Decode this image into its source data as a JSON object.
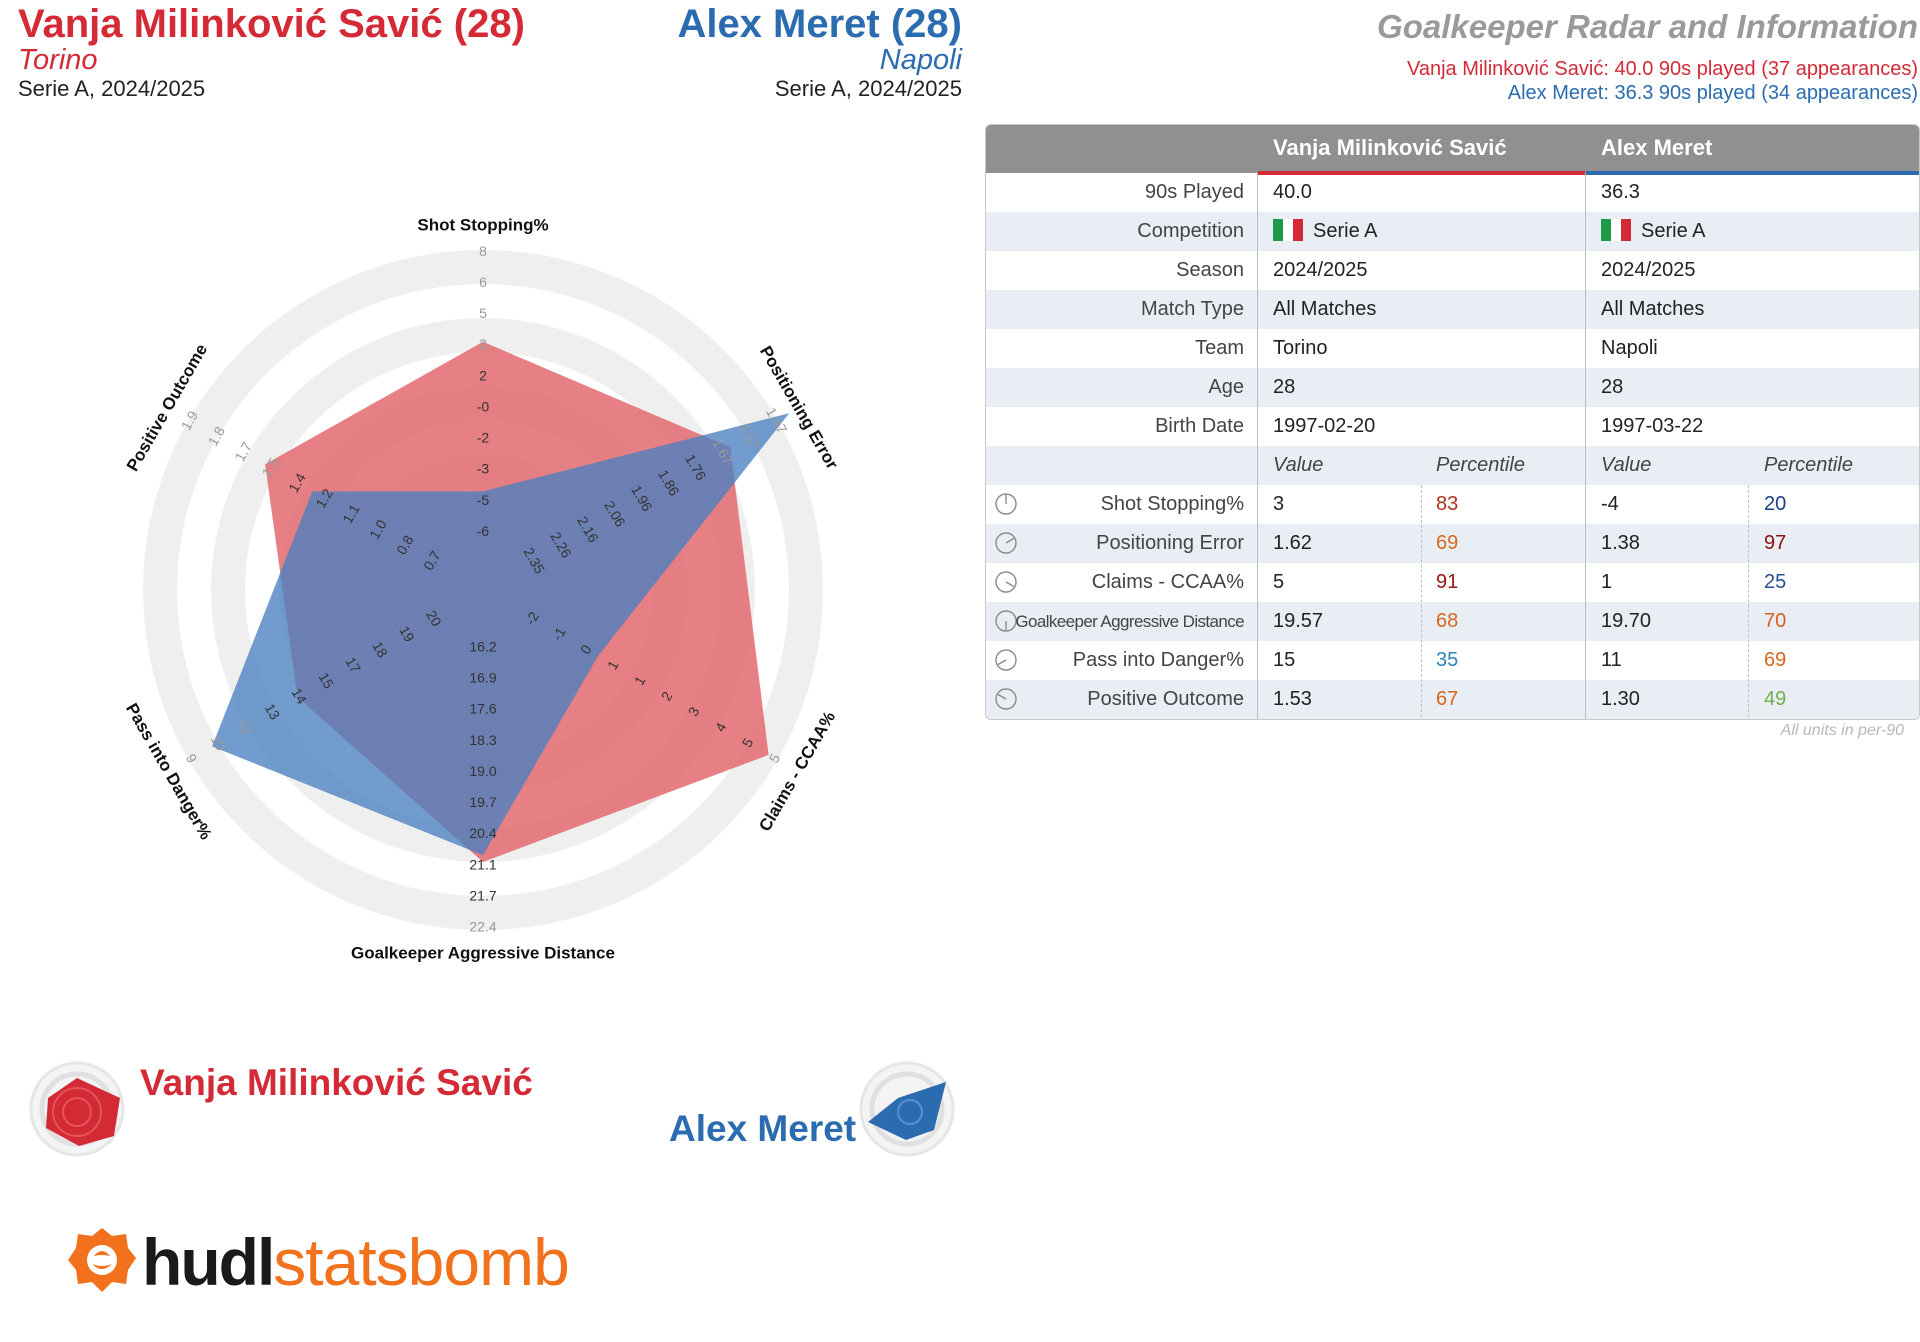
{
  "header": {
    "player1": {
      "name": "Vanja Milinković Savić (28)",
      "team": "Torino",
      "competition": "Serie A, 2024/2025"
    },
    "player2": {
      "name": "Alex Meret (28)",
      "team": "Napoli",
      "competition": "Serie A, 2024/2025"
    },
    "right_title": "Goalkeeper Radar and Information",
    "right_line1": "Vanja Milinković Savić: 40.0 90s played (37 appearances)",
    "right_line2": "Alex Meret: 36.3 90s played (34 appearances)"
  },
  "colors": {
    "player1": "#d42a36",
    "player2": "#2b6cb0",
    "fill1": "#e36a6f",
    "fill2": "#4a7fc0"
  },
  "chart_data": {
    "type": "radar",
    "axes": [
      {
        "label": "Shot Stopping%",
        "ticks": [
          "-6",
          "-5",
          "-3",
          "-2",
          "-0",
          "2",
          "3",
          "5",
          "6",
          "8"
        ],
        "grey_from": 7
      },
      {
        "label": "Positioning Error",
        "ticks": [
          "2.35",
          "2.26",
          "2.16",
          "2.06",
          "1.96",
          "1.86",
          "1.76",
          "1.67",
          "1.57",
          "1.47"
        ],
        "grey_from": 8
      },
      {
        "label": "Claims - CCAA%",
        "ticks": [
          "-2",
          "-1",
          "0",
          "1",
          "1",
          "2",
          "3",
          "4",
          "5",
          "5"
        ],
        "grey_from": 10
      },
      {
        "label": "Goalkeeper Aggressive Distance",
        "ticks": [
          "16.2",
          "16.9",
          "17.6",
          "18.3",
          "19.0",
          "19.7",
          "20.4",
          "21.1",
          "21.7",
          "22.4"
        ],
        "grey_from": 10
      },
      {
        "label": "Pass into Danger%",
        "ticks": [
          "20",
          "19",
          "18",
          "17",
          "15",
          "14",
          "13",
          "12",
          "10",
          "9"
        ],
        "grey_from": 8
      },
      {
        "label": "Positive Outcome",
        "ticks": [
          "0.7",
          "0.8",
          "1.0",
          "1.1",
          "1.2",
          "1.4",
          "1.5",
          "1.7",
          "1.8",
          "1.9"
        ],
        "grey_from": 7
      }
    ],
    "series": [
      {
        "name": "Vanja Milinković Savić",
        "values": [
          3,
          1.62,
          5,
          19.57,
          15,
          1.53
        ],
        "fractions": [
          0.73,
          0.84,
          0.97,
          0.8,
          0.63,
          0.74
        ]
      },
      {
        "name": "Alex Meret",
        "values": [
          -4,
          1.38,
          1,
          19.7,
          11,
          1.3
        ],
        "fractions": [
          0.29,
          1.04,
          0.39,
          0.78,
          0.92,
          0.58
        ]
      }
    ]
  },
  "table": {
    "headers": [
      "Vanja Milinković Savić",
      "Alex Meret"
    ],
    "info_rows": [
      {
        "label": "90s Played",
        "v1": "40.0",
        "v2": "36.3"
      },
      {
        "label": "Competition",
        "v1": "Serie A",
        "v2": "Serie A",
        "flag": true
      },
      {
        "label": "Season",
        "v1": "2024/2025",
        "v2": "2024/2025"
      },
      {
        "label": "Match Type",
        "v1": "All Matches",
        "v2": "All Matches"
      },
      {
        "label": "Team",
        "v1": "Torino",
        "v2": "Napoli"
      },
      {
        "label": "Age",
        "v1": "28",
        "v2": "28"
      },
      {
        "label": "Birth Date",
        "v1": "1997-02-20",
        "v2": "1997-03-22"
      }
    ],
    "sub_headers": {
      "value": "Value",
      "percentile": "Percentile"
    },
    "stat_rows": [
      {
        "label": "Shot Stopping%",
        "v1": "3",
        "p1": "83",
        "p1c": "#b03018",
        "v2": "-4",
        "p2": "20",
        "p2c": "#1d3f86"
      },
      {
        "label": "Positioning Error",
        "v1": "1.62",
        "p1": "69",
        "p1c": "#d8661c",
        "v2": "1.38",
        "p2": "97",
        "p2c": "#8a1010"
      },
      {
        "label": "Claims - CCAA%",
        "v1": "5",
        "p1": "91",
        "p1c": "#9a1712",
        "v2": "1",
        "p2": "25",
        "p2c": "#27508f"
      },
      {
        "label": "Goalkeeper Aggressive Distance",
        "v1": "19.57",
        "p1": "68",
        "p1c": "#d8661c",
        "v2": "19.70",
        "p2": "70",
        "p2c": "#d8601c",
        "small": true
      },
      {
        "label": "Pass into Danger%",
        "v1": "15",
        "p1": "35",
        "p1c": "#2d84b8",
        "v2": "11",
        "p2": "69",
        "p2c": "#d8661c"
      },
      {
        "label": "Positive Outcome",
        "v1": "1.53",
        "p1": "67",
        "p1c": "#d8661c",
        "v2": "1.30",
        "p2": "49",
        "p2c": "#6cb04a"
      }
    ],
    "note": "All units in per-90"
  },
  "legend": {
    "player1": "Vanja Milinković Savić",
    "player2": "Alex Meret"
  },
  "logo": {
    "part1": "hudl",
    "part2": "statsbomb"
  }
}
